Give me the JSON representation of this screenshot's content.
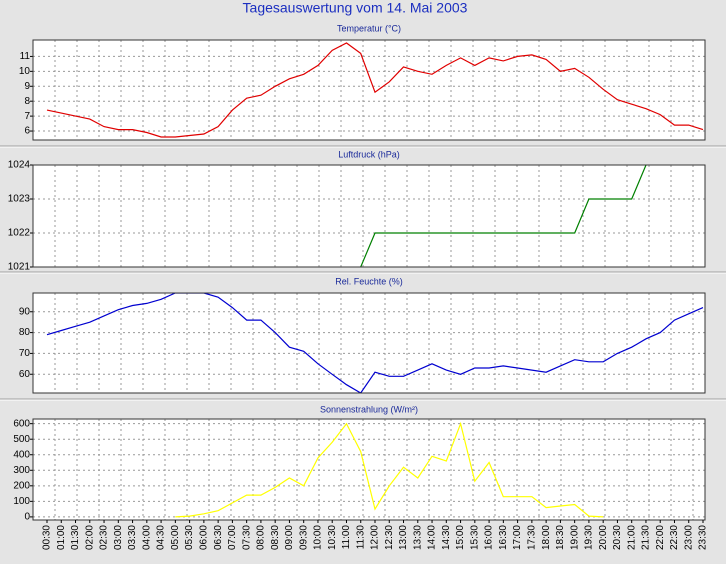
{
  "title": "Tagesauswertung vom 14. Mai 2003",
  "chart_data": [
    {
      "type": "line",
      "title": "Temperatur (°C)",
      "color": "#e00000",
      "grid": true,
      "ylim": [
        5.4,
        12.1
      ],
      "yticks": [
        6,
        7,
        8,
        9,
        10,
        11
      ],
      "values": [
        7.4,
        7.2,
        7.0,
        6.8,
        6.3,
        6.1,
        6.1,
        5.9,
        5.6,
        5.6,
        5.7,
        5.8,
        6.3,
        7.4,
        8.2,
        8.4,
        9.0,
        9.5,
        9.8,
        10.4,
        11.4,
        11.9,
        11.2,
        8.6,
        9.3,
        10.3,
        10.0,
        9.8,
        10.4,
        10.9,
        10.4,
        10.9,
        10.7,
        11.0,
        11.1,
        10.8,
        10.0,
        10.2,
        9.6,
        8.8,
        8.1,
        7.8,
        7.5,
        7.1,
        6.4,
        6.4,
        6.1
      ]
    },
    {
      "type": "line",
      "title": "Luftdruck (hPa)",
      "color": "#008000",
      "grid": true,
      "ylim": [
        1021,
        1024
      ],
      "yticks": [
        1021,
        1022,
        1023,
        1024
      ],
      "values": [
        null,
        null,
        null,
        null,
        null,
        null,
        null,
        null,
        null,
        null,
        null,
        null,
        null,
        null,
        null,
        null,
        null,
        null,
        null,
        null,
        null,
        null,
        1021,
        1022,
        1022,
        1022,
        1022,
        1022,
        1022,
        1022,
        1022,
        1022,
        1022,
        1022,
        1022,
        1022,
        1022,
        1022,
        1023,
        1023,
        1023,
        1023,
        1024,
        null,
        null,
        null,
        null
      ]
    },
    {
      "type": "line",
      "title": "Rel. Feuchte (%)",
      "color": "#0000d0",
      "grid": true,
      "ylim": [
        51,
        99
      ],
      "yticks": [
        60,
        70,
        80,
        90
      ],
      "values": [
        79,
        81,
        83,
        85,
        88,
        91,
        93,
        94,
        96,
        99,
        99,
        99,
        97,
        92,
        86,
        86,
        80,
        73,
        71,
        65,
        60,
        55,
        51,
        61,
        59,
        59,
        62,
        65,
        62,
        60,
        63,
        63,
        64,
        63,
        62,
        61,
        64,
        67,
        66,
        66,
        70,
        73,
        77,
        80,
        86,
        89,
        92
      ]
    },
    {
      "type": "line",
      "title": "Sonnenstrahlung (W/m²)",
      "color": "#ffff00",
      "grid": true,
      "ylim": [
        -20,
        630
      ],
      "yticks": [
        0,
        100,
        200,
        300,
        400,
        500,
        600
      ],
      "values": [
        null,
        null,
        null,
        null,
        null,
        null,
        null,
        null,
        null,
        0,
        5,
        20,
        40,
        90,
        140,
        140,
        190,
        250,
        200,
        380,
        480,
        600,
        420,
        50,
        200,
        320,
        250,
        390,
        360,
        600,
        230,
        350,
        130,
        130,
        130,
        60,
        70,
        80,
        5,
        0,
        null,
        null,
        null,
        null,
        null,
        null,
        null
      ],
      "categories": [
        "00:30",
        "01:00",
        "01:30",
        "02:00",
        "02:30",
        "03:00",
        "03:30",
        "04:00",
        "04:30",
        "05:00",
        "05:30",
        "06:00",
        "06:30",
        "07:00",
        "07:30",
        "08:00",
        "08:30",
        "09:00",
        "09:30",
        "10:00",
        "10:30",
        "11:00",
        "11:30",
        "12:00",
        "12:30",
        "13:00",
        "13:30",
        "14:00",
        "14:30",
        "15:00",
        "15:30",
        "16:00",
        "16:30",
        "17:00",
        "17:30",
        "18:00",
        "18:30",
        "19:00",
        "19:30",
        "20:00",
        "20:30",
        "21:00",
        "21:30",
        "22:00",
        "22:30",
        "23:00",
        "23:30"
      ]
    }
  ]
}
